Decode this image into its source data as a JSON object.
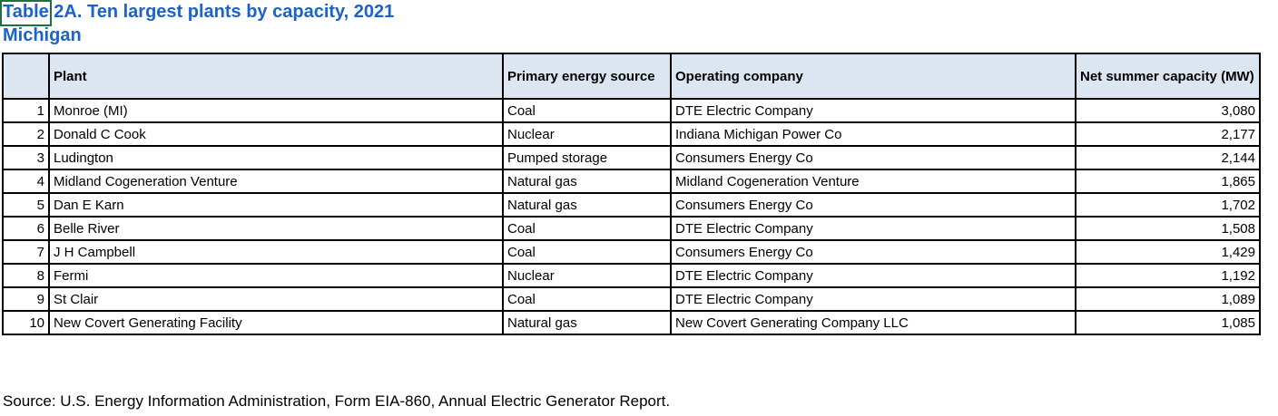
{
  "title": {
    "line1": "Table 2A. Ten largest plants by capacity, 2021",
    "line2": "Michigan"
  },
  "table": {
    "columns": [
      "",
      "Plant",
      "Primary energy source",
      "Operating company",
      "Net summer capacity (MW)"
    ],
    "rows": [
      {
        "rank": "1",
        "plant": "Monroe (MI)",
        "primary_energy_source": "Coal",
        "operating_company": "DTE Electric Company",
        "net_summer_capacity_mw": "3,080"
      },
      {
        "rank": "2",
        "plant": "Donald C Cook",
        "primary_energy_source": "Nuclear",
        "operating_company": "Indiana Michigan Power Co",
        "net_summer_capacity_mw": "2,177"
      },
      {
        "rank": "3",
        "plant": "Ludington",
        "primary_energy_source": "Pumped storage",
        "operating_company": "Consumers Energy Co",
        "net_summer_capacity_mw": "2,144"
      },
      {
        "rank": "4",
        "plant": "Midland Cogeneration Venture",
        "primary_energy_source": "Natural gas",
        "operating_company": "Midland Cogeneration Venture",
        "net_summer_capacity_mw": "1,865"
      },
      {
        "rank": "5",
        "plant": "Dan E Karn",
        "primary_energy_source": "Natural gas",
        "operating_company": "Consumers Energy Co",
        "net_summer_capacity_mw": "1,702"
      },
      {
        "rank": "6",
        "plant": "Belle River",
        "primary_energy_source": "Coal",
        "operating_company": "DTE Electric Company",
        "net_summer_capacity_mw": "1,508"
      },
      {
        "rank": "7",
        "plant": "J H Campbell",
        "primary_energy_source": "Coal",
        "operating_company": "Consumers Energy Co",
        "net_summer_capacity_mw": "1,429"
      },
      {
        "rank": "8",
        "plant": "Fermi",
        "primary_energy_source": "Nuclear",
        "operating_company": "DTE Electric Company",
        "net_summer_capacity_mw": "1,192"
      },
      {
        "rank": "9",
        "plant": "St Clair",
        "primary_energy_source": "Coal",
        "operating_company": "DTE Electric Company",
        "net_summer_capacity_mw": "1,089"
      },
      {
        "rank": "10",
        "plant": "New Covert Generating Facility",
        "primary_energy_source": "Natural gas",
        "operating_company": "New Covert Generating Company LLC",
        "net_summer_capacity_mw": "1,085"
      }
    ]
  },
  "source_note": "Source: U.S. Energy Information Administration, Form EIA-860, Annual Electric Generator Report.",
  "colors": {
    "title_blue": "#1a62cc",
    "selection_green": "#1a7340",
    "header_bg": "#dce6f1",
    "border_black": "#000000"
  }
}
